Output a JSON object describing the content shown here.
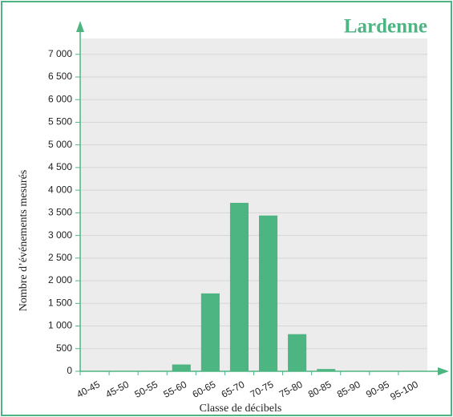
{
  "chart_data": {
    "type": "bar",
    "title": "Lardenne",
    "x_label": "Classe de décibels",
    "y_label": "Nombre d’événements mesurés",
    "categories": [
      "40-45",
      "45-50",
      "50-55",
      "55-60",
      "60-65",
      "65-70",
      "70-75",
      "75-80",
      "80-85",
      "85-90",
      "90-95",
      "95-100"
    ],
    "values": [
      0,
      3,
      10,
      150,
      1720,
      3720,
      3440,
      820,
      50,
      5,
      3,
      3
    ],
    "color": "#4db582",
    "ylim": [
      0,
      7350
    ],
    "yticks": [
      0,
      500,
      {
        "value": 1000,
        "label": "1 000"
      },
      {
        "value": 1500,
        "label": "1 500"
      },
      {
        "value": 2000,
        "label": "2 000"
      },
      {
        "value": 2500,
        "label": "2 500"
      },
      {
        "value": 3000,
        "label": "3 000"
      },
      {
        "value": 3500,
        "label": "3 500"
      },
      {
        "value": 4000,
        "label": "4 000"
      },
      {
        "value": 4500,
        "label": "4 500"
      },
      {
        "value": 5000,
        "label": "5 000"
      },
      {
        "value": 5500,
        "label": "5 500"
      },
      {
        "value": 6000,
        "label": "6 000"
      },
      {
        "value": 6500,
        "label": "6 500"
      },
      {
        "value": 7000,
        "label": "7 000"
      }
    ],
    "grid": true
  }
}
